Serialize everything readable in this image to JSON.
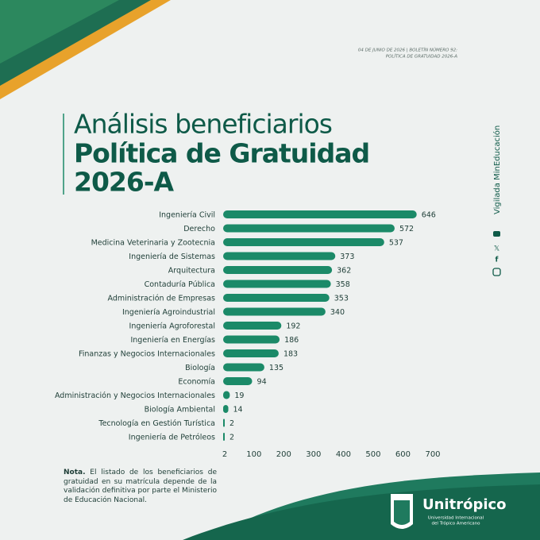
{
  "header": {
    "line1": "04 DE JUNIO DE 2026 | BOLETÍN NÚMERO 92:",
    "line2": "POLÍTICA DE GRATUIDAD 2026-A"
  },
  "title": {
    "line1": "Análisis beneficiarios",
    "line2": "Política de Gratuidad",
    "line3": "2026-A"
  },
  "side_text": "Vigilada MinEducación",
  "chart_data": {
    "type": "bar",
    "orientation": "horizontal",
    "color": "#1b8a68",
    "categories": [
      "Ingeniería Civil",
      "Derecho",
      "Medicina Veterinaria y Zootecnia",
      "Ingeniería de Sistemas",
      "Arquitectura",
      "Contaduría Pública",
      "Administración de Empresas",
      "Ingeniería Agroindustrial",
      "Ingeniería Agroforestal",
      "Ingeniería en Energías",
      "Finanzas y Negocios Internacionales",
      "Biología",
      "Economía",
      "Administración y Negocios Internacionales",
      "Biología Ambiental",
      "Tecnología en Gestión Turística",
      "Ingeniería de Petróleos"
    ],
    "values": [
      646,
      572,
      537,
      373,
      362,
      358,
      353,
      340,
      192,
      186,
      183,
      135,
      94,
      19,
      14,
      2,
      2
    ],
    "xlim": [
      2,
      700
    ],
    "xticks": [
      2,
      100,
      200,
      300,
      400,
      500,
      600,
      700
    ],
    "grid": false
  },
  "note": {
    "label": "Nota.",
    "text": "El listado de los beneficiarios de gratuidad en su matrícula depende de la validación definitiva por parte el Ministerio de Educación Nacional."
  },
  "logo": {
    "name": "Unitrópico",
    "line1": "Universidad Internacional",
    "line2": "del Trópico Americano"
  }
}
